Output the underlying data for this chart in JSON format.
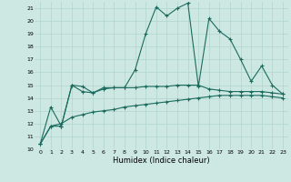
{
  "xlabel": "Humidex (Indice chaleur)",
  "bg_color": "#cde8e2",
  "line_color": "#1a6b5e",
  "grid_color": "#b0d4cc",
  "xlim": [
    -0.5,
    23.5
  ],
  "ylim": [
    10,
    21.5
  ],
  "yticks": [
    10,
    11,
    12,
    13,
    14,
    15,
    16,
    17,
    18,
    19,
    20,
    21
  ],
  "xticks": [
    0,
    1,
    2,
    3,
    4,
    5,
    6,
    7,
    8,
    9,
    10,
    11,
    12,
    13,
    14,
    15,
    16,
    17,
    18,
    19,
    20,
    21,
    22,
    23
  ],
  "line1_x": [
    0,
    1,
    2,
    3,
    4,
    5,
    6,
    7,
    8,
    9,
    10,
    11,
    12,
    13,
    14,
    15,
    16,
    17,
    18,
    19,
    20,
    21,
    22,
    23
  ],
  "line1_y": [
    10.4,
    13.3,
    11.8,
    15.0,
    14.9,
    14.4,
    14.7,
    14.8,
    14.8,
    16.2,
    19.0,
    21.1,
    20.4,
    21.0,
    21.4,
    14.9,
    20.2,
    19.2,
    18.6,
    17.0,
    15.3,
    16.5,
    15.0,
    14.3
  ],
  "line2_x": [
    0,
    1,
    2,
    3,
    4,
    5,
    6,
    7,
    8,
    9,
    10,
    11,
    12,
    13,
    14,
    15,
    16,
    17,
    18,
    19,
    20,
    21,
    22,
    23
  ],
  "line2_y": [
    10.4,
    11.8,
    11.8,
    15.0,
    14.5,
    14.4,
    14.8,
    14.8,
    14.8,
    14.8,
    14.9,
    14.9,
    14.9,
    15.0,
    15.0,
    15.0,
    14.7,
    14.6,
    14.5,
    14.5,
    14.5,
    14.5,
    14.4,
    14.3
  ],
  "line3_x": [
    0,
    1,
    2,
    3,
    4,
    5,
    6,
    7,
    8,
    9,
    10,
    11,
    12,
    13,
    14,
    15,
    16,
    17,
    18,
    19,
    20,
    21,
    22,
    23
  ],
  "line3_y": [
    10.4,
    11.8,
    12.0,
    12.5,
    12.7,
    12.9,
    13.0,
    13.1,
    13.3,
    13.4,
    13.5,
    13.6,
    13.7,
    13.8,
    13.9,
    14.0,
    14.1,
    14.2,
    14.2,
    14.2,
    14.2,
    14.2,
    14.1,
    14.0
  ]
}
